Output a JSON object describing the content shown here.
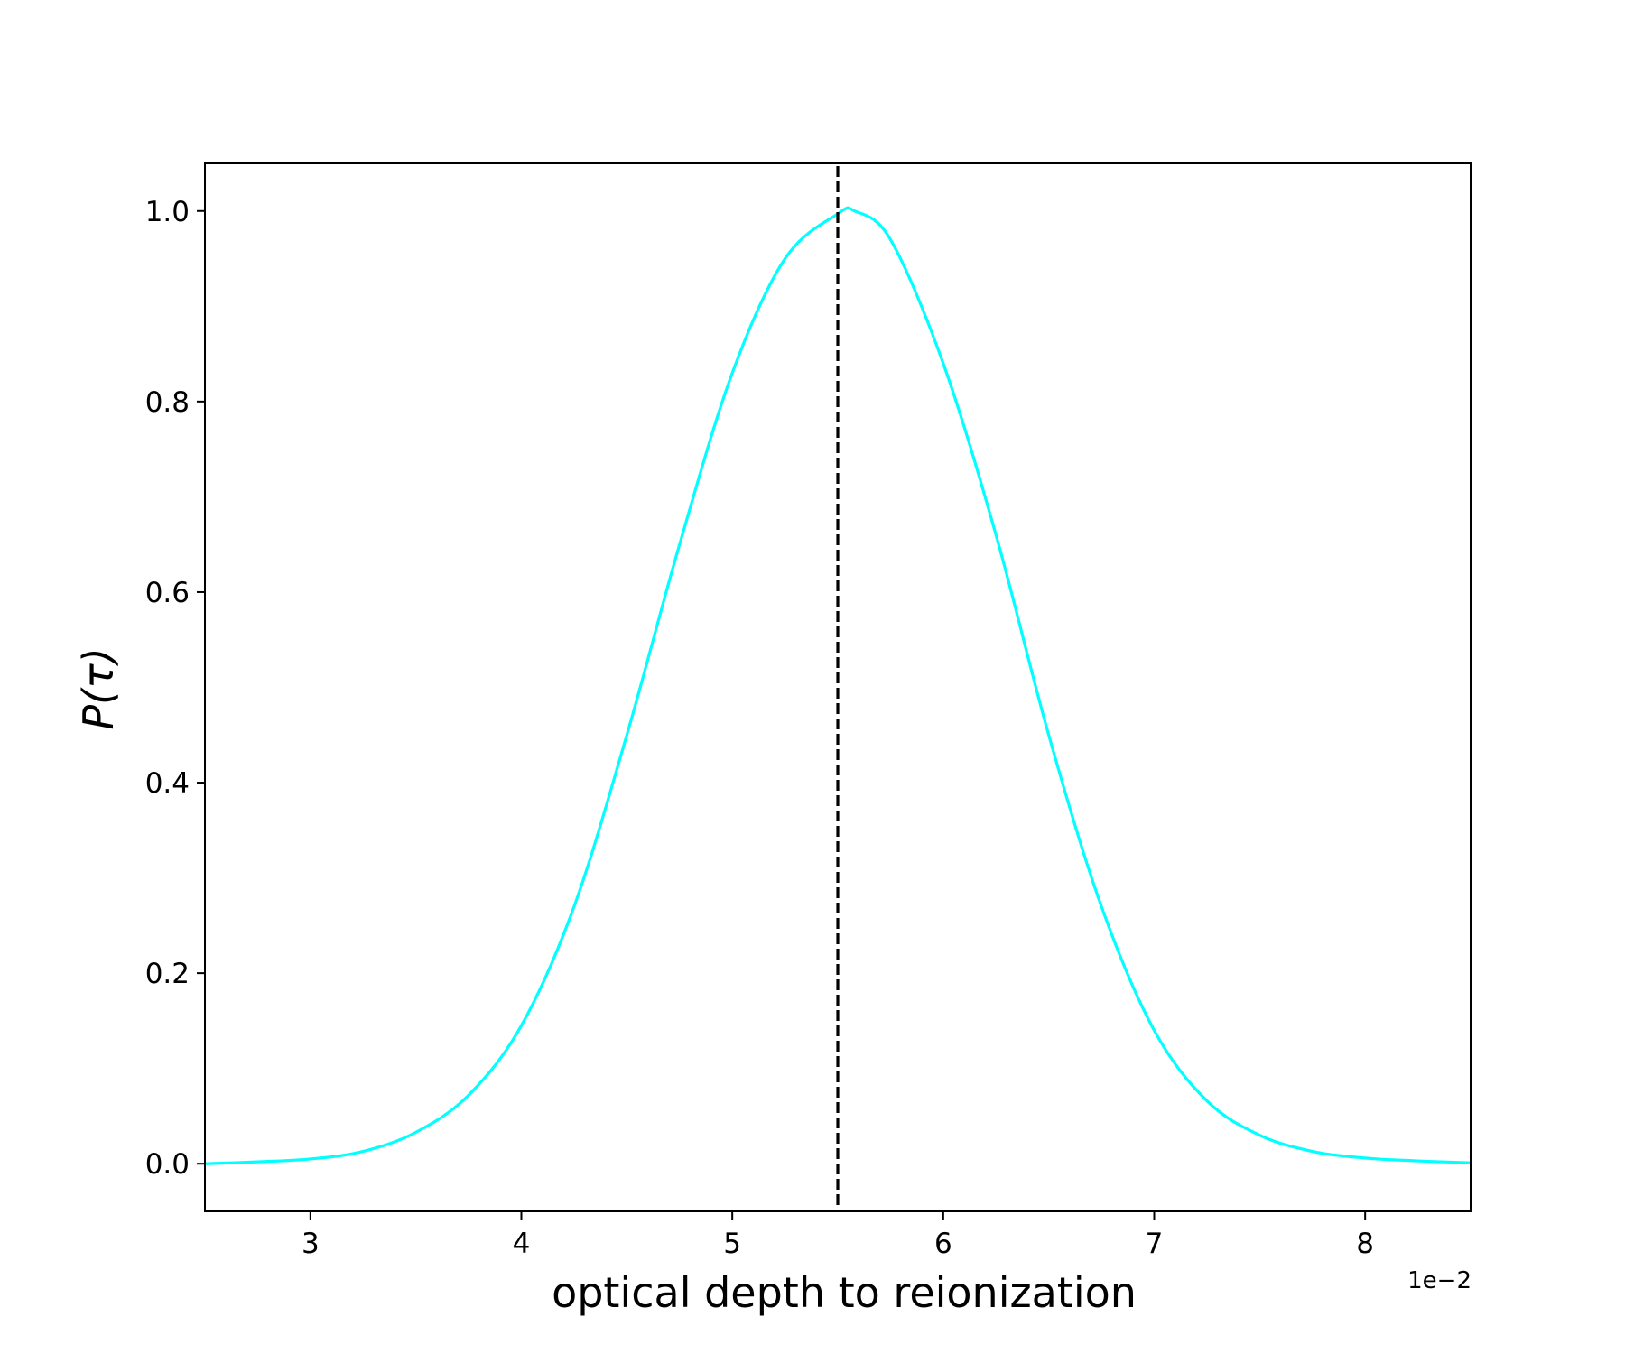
{
  "chart_data": {
    "type": "line",
    "title": "",
    "xlabel": "optical depth to reionization",
    "ylabel": "P(τ)",
    "x_offset_label": "1e−2",
    "xlim": [
      2.5,
      8.5
    ],
    "ylim": [
      -0.05,
      1.05
    ],
    "x_ticks": [
      3,
      4,
      5,
      6,
      7,
      8
    ],
    "x_tick_labels": [
      "3",
      "4",
      "5",
      "6",
      "7",
      "8"
    ],
    "y_ticks": [
      0.0,
      0.2,
      0.4,
      0.6,
      0.8,
      1.0
    ],
    "y_tick_labels": [
      "0.0",
      "0.2",
      "0.4",
      "0.6",
      "0.8",
      "1.0"
    ],
    "grid": false,
    "series": [
      {
        "color": "#00ffff",
        "style": "solid",
        "x": [
          2.5,
          2.75,
          3.0,
          3.25,
          3.5,
          3.75,
          4.0,
          4.25,
          4.5,
          4.75,
          5.0,
          5.25,
          5.5,
          5.58,
          5.75,
          6.0,
          6.25,
          6.5,
          6.75,
          7.0,
          7.25,
          7.5,
          7.75,
          8.0,
          8.25,
          8.5
        ],
        "y": [
          0.0,
          0.002,
          0.005,
          0.013,
          0.033,
          0.072,
          0.145,
          0.27,
          0.45,
          0.65,
          0.83,
          0.95,
          0.997,
          1.0,
          0.97,
          0.84,
          0.66,
          0.45,
          0.27,
          0.14,
          0.066,
          0.03,
          0.013,
          0.006,
          0.003,
          0.001
        ]
      }
    ],
    "reference_lines": [
      {
        "orientation": "vertical",
        "x": 5.5,
        "color": "#000000",
        "style": "dashed"
      }
    ]
  }
}
